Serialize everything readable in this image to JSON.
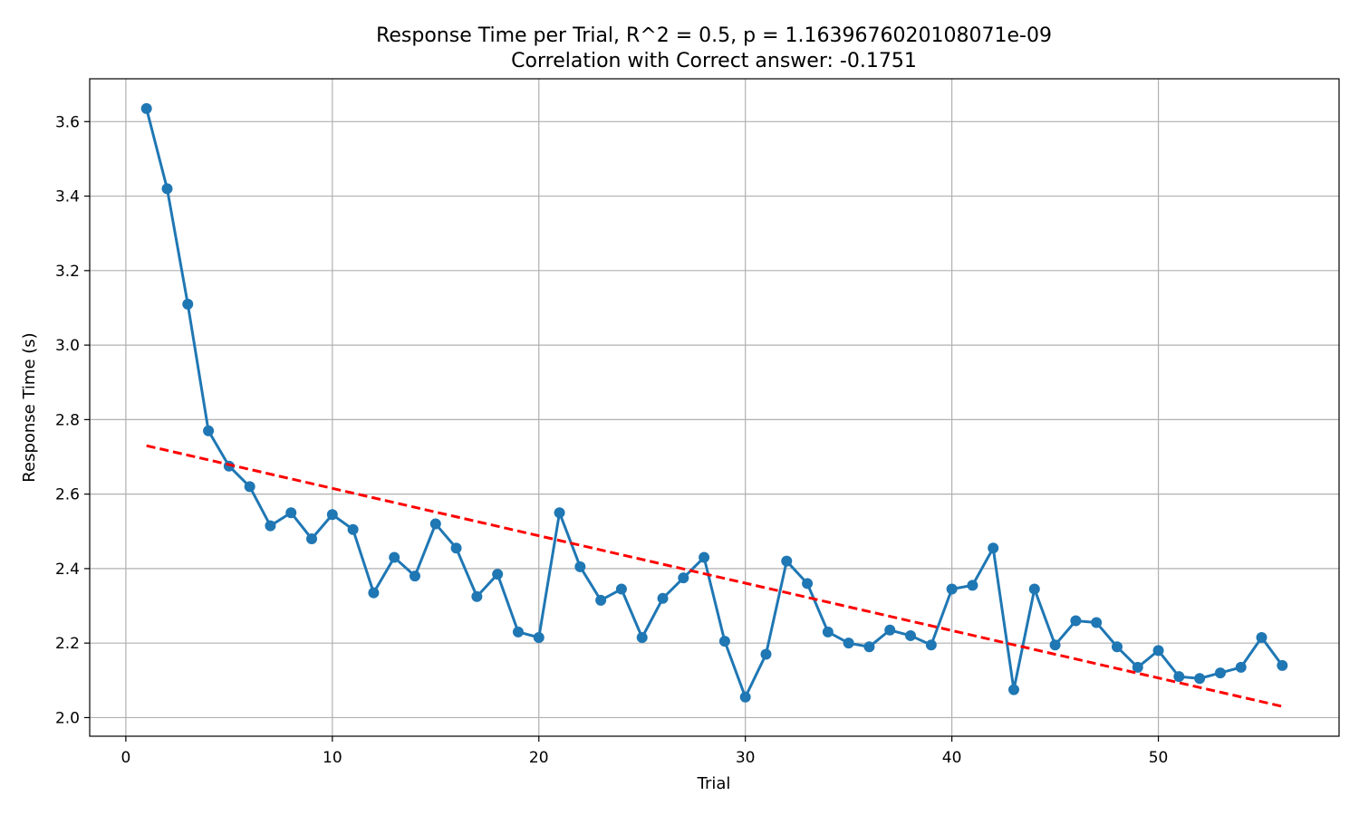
{
  "chart_data": {
    "type": "line",
    "title": "Response Time per Trial, R^2 = 0.5, p = 1.1639676020108071e-09",
    "subtitle": "Correlation with Correct answer: -0.1751",
    "xlabel": "Trial",
    "ylabel": "Response Time (s)",
    "xlim": [
      -1.75,
      58.75
    ],
    "ylim": [
      1.95,
      3.715
    ],
    "xticks": [
      0,
      10,
      20,
      30,
      40,
      50
    ],
    "yticks": [
      2.0,
      2.2,
      2.4,
      2.6,
      2.8,
      3.0,
      3.2,
      3.4,
      3.6
    ],
    "xtick_labels": [
      "0",
      "10",
      "20",
      "30",
      "40",
      "50"
    ],
    "ytick_labels": [
      "2.0",
      "2.2",
      "2.4",
      "2.6",
      "2.8",
      "3.0",
      "3.2",
      "3.4",
      "3.6"
    ],
    "grid": true,
    "x": [
      1,
      2,
      3,
      4,
      5,
      6,
      7,
      8,
      9,
      10,
      11,
      12,
      13,
      14,
      15,
      16,
      17,
      18,
      19,
      20,
      21,
      22,
      23,
      24,
      25,
      26,
      27,
      28,
      29,
      30,
      31,
      32,
      33,
      34,
      35,
      36,
      37,
      38,
      39,
      40,
      41,
      42,
      43,
      44,
      45,
      46,
      47,
      48,
      49,
      50,
      51,
      52,
      53,
      54,
      55,
      56
    ],
    "series": [
      {
        "color": "#1f77b4",
        "style": "solid-line-circle-markers",
        "values": [
          3.635,
          3.42,
          3.11,
          2.77,
          2.675,
          2.62,
          2.515,
          2.55,
          2.48,
          2.545,
          2.505,
          2.335,
          2.43,
          2.38,
          2.52,
          2.455,
          2.325,
          2.385,
          2.23,
          2.215,
          2.55,
          2.405,
          2.315,
          2.345,
          2.215,
          2.32,
          2.375,
          2.43,
          2.205,
          2.055,
          2.17,
          2.42,
          2.36,
          2.23,
          2.2,
          2.19,
          2.235,
          2.22,
          2.195,
          2.345,
          2.355,
          2.455,
          2.075,
          2.345,
          2.195,
          2.26,
          2.255,
          2.19,
          2.135,
          2.18,
          2.11,
          2.105,
          2.12,
          2.135,
          2.215,
          2.14
        ]
      },
      {
        "color": "#ff0000",
        "style": "dashed-trend-line",
        "x": [
          1,
          56
        ],
        "values": [
          2.73,
          2.03
        ]
      }
    ]
  }
}
